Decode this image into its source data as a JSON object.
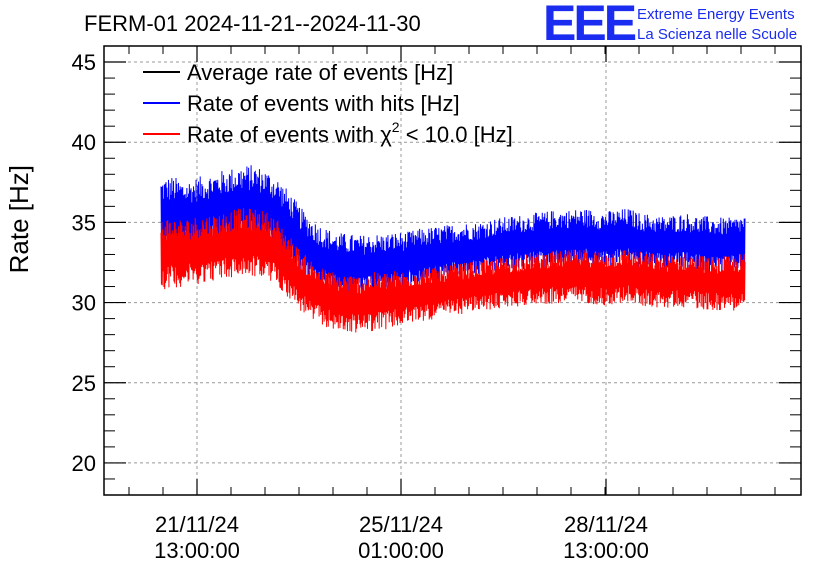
{
  "chart_data": {
    "type": "line",
    "title": "FERM-01 2024-11-21--2024-11-30",
    "ylabel": "Rate [Hz]",
    "ylim": [
      18,
      46
    ],
    "yticks": [
      20,
      25,
      30,
      35,
      40,
      45
    ],
    "xticks": [
      {
        "date": "21/11/24",
        "time": "13:00:00"
      },
      {
        "date": "25/11/24",
        "time": "01:00:00"
      },
      {
        "date": "28/11/24",
        "time": "13:00:00"
      }
    ],
    "grid": true,
    "legend_position": "top-left",
    "legend": [
      {
        "label": "Average rate of events [Hz]",
        "color": "#000000"
      },
      {
        "label": "Rate of events with hits [Hz]",
        "color": "#0000ff"
      },
      {
        "label_prefix": "Rate of events with ",
        "label_symbol": "χ",
        "label_sup": "2",
        "label_suffix": " < 10.0 [Hz]",
        "color": "#ff0000"
      }
    ],
    "series": [
      {
        "name": "Rate of events with hits [Hz]",
        "color": "#0000ff",
        "upper": [
          37.8,
          37.9,
          37.6,
          37.8,
          38.0,
          38.2,
          38.4,
          38.6,
          38.6,
          38.3,
          37.8,
          36.9,
          35.9,
          35.2,
          34.7,
          34.4,
          34.3,
          34.2,
          34.3,
          34.3,
          34.4,
          34.4,
          34.6,
          34.7,
          34.8,
          34.9,
          35.0,
          35.0,
          35.2,
          35.3,
          35.4,
          35.5,
          35.6,
          35.7,
          35.8,
          35.8,
          35.9,
          35.8,
          35.7,
          35.8,
          35.9,
          35.6,
          35.5,
          35.4,
          35.5,
          35.6,
          35.4,
          35.4,
          35.3,
          35.3,
          35.5
        ],
        "lower": [
          32.8,
          32.9,
          33.0,
          33.1,
          33.2,
          33.3,
          33.4,
          33.5,
          33.5,
          33.4,
          33.0,
          32.2,
          31.5,
          30.9,
          30.6,
          30.4,
          30.3,
          30.3,
          30.4,
          30.5,
          30.6,
          30.8,
          31.0,
          31.1,
          31.2,
          31.4,
          31.5,
          31.6,
          31.7,
          31.8,
          31.9,
          32.0,
          32.1,
          32.1,
          32.1,
          32.2,
          32.2,
          32.1,
          32.1,
          32.2,
          32.3,
          32.1,
          32.0,
          31.9,
          32.0,
          32.0,
          31.9,
          31.8,
          31.8,
          31.8,
          32.0
        ]
      },
      {
        "name": "Rate of events with χ2 < 10.0 [Hz]",
        "color": "#ff0000",
        "upper": [
          35.4,
          35.3,
          35.2,
          35.4,
          35.5,
          35.6,
          35.8,
          35.9,
          35.9,
          35.7,
          35.2,
          34.2,
          33.2,
          32.6,
          32.1,
          31.9,
          31.8,
          31.7,
          31.9,
          31.9,
          32.0,
          32.0,
          32.1,
          32.3,
          32.3,
          32.4,
          32.5,
          32.6,
          32.7,
          32.8,
          32.9,
          33.0,
          33.1,
          33.2,
          33.2,
          33.3,
          33.3,
          33.3,
          33.2,
          33.3,
          33.4,
          33.2,
          33.1,
          33.0,
          33.0,
          33.1,
          33.0,
          32.9,
          32.9,
          32.9,
          33.1
        ],
        "lower": [
          30.8,
          30.9,
          31.0,
          31.1,
          31.3,
          31.4,
          31.5,
          31.6,
          31.6,
          31.4,
          31.0,
          30.2,
          29.4,
          28.8,
          28.5,
          28.2,
          28.1,
          28.1,
          28.2,
          28.3,
          28.4,
          28.6,
          28.8,
          28.9,
          29.0,
          29.2,
          29.3,
          29.4,
          29.5,
          29.6,
          29.7,
          29.8,
          29.9,
          29.9,
          29.9,
          30.0,
          30.0,
          29.9,
          29.8,
          29.9,
          30.0,
          29.8,
          29.7,
          29.6,
          29.7,
          29.7,
          29.6,
          29.5,
          29.5,
          29.5,
          29.7
        ]
      }
    ]
  },
  "logo": {
    "mark": "EEE",
    "line1": "Extreme Energy Events",
    "line2": "La Scienza nelle Scuole"
  }
}
